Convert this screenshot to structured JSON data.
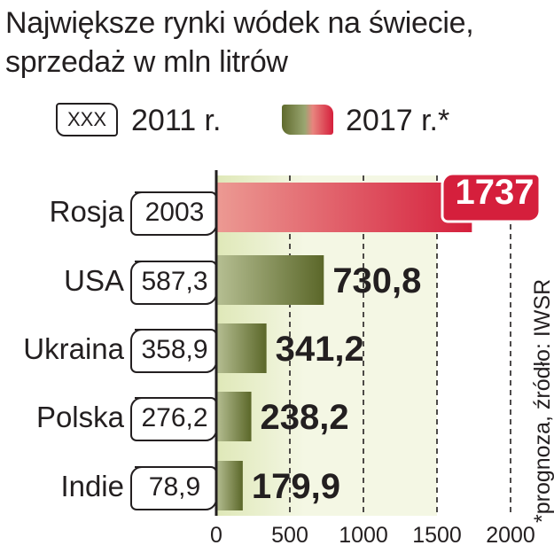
{
  "title_line1": "Największe rynki wódek na świecie,",
  "title_line2": "sprzedaż w mln litrów",
  "legend": {
    "box_text": "XXX",
    "label_2011": "2011 r.",
    "label_2017": "2017 r.*"
  },
  "note": "*prognoza, źródło: IWSR",
  "chart_data": {
    "type": "bar",
    "orientation": "horizontal",
    "categories": [
      "Rosja",
      "USA",
      "Ukraina",
      "Polska",
      "Indie"
    ],
    "series": [
      {
        "name": "2011 r.",
        "values": [
          2003,
          587.3,
          358.9,
          276.2,
          78.9
        ],
        "labels": [
          "2003",
          "587,3",
          "358,9",
          "276,2",
          "78,9"
        ]
      },
      {
        "name": "2017 r.*",
        "values": [
          1737,
          730.8,
          341.2,
          238.2,
          179.9
        ],
        "labels": [
          "1737",
          "730,8",
          "341,2",
          "238,2",
          "179,9"
        ]
      }
    ],
    "xlim": [
      0,
      2000
    ],
    "ticks": [
      0,
      500,
      1000,
      1500,
      2000
    ],
    "tick_labels": [
      "0",
      "500",
      "1000",
      "1500",
      "2000"
    ],
    "grid": "dashed vertical",
    "colors": {
      "bar": "#6e7a38",
      "bar_highlight": "#d51f3c",
      "background": "#eef3d6"
    }
  }
}
